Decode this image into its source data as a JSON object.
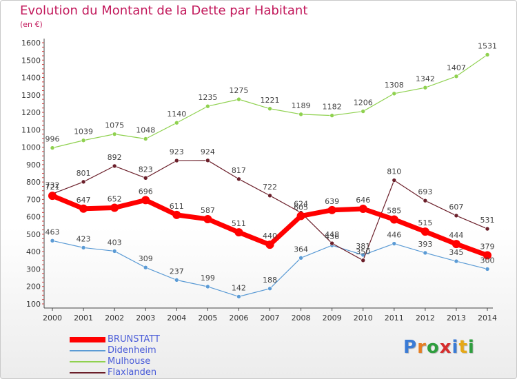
{
  "title": "Evolution du Montant de la Dette par Habitant",
  "unit": "(en €)",
  "logo": {
    "text": "Proxiti",
    "letters": [
      {
        "ch": "P",
        "color": "#3a7bd5"
      },
      {
        "ch": "r",
        "color": "#e67e22"
      },
      {
        "ch": "o",
        "color": "#2e9e3e"
      },
      {
        "ch": "x",
        "color": "#d62d2d"
      },
      {
        "ch": "i",
        "color": "#3a7bd5"
      },
      {
        "ch": "t",
        "color": "#e6a817"
      },
      {
        "ch": "i",
        "color": "#2e9e3e"
      }
    ]
  },
  "chart_data": {
    "type": "line",
    "title": "Evolution du Montant de la Dette par Habitant",
    "subtitle": "(en €)",
    "xlabel": "",
    "ylabel": "",
    "x": [
      "2000",
      "2001",
      "2002",
      "2003",
      "2004",
      "2005",
      "2006",
      "2007",
      "2008",
      "2009",
      "2010",
      "2011",
      "2012",
      "2013",
      "2014"
    ],
    "ylim": [
      100,
      1600
    ],
    "yticks": [
      100,
      200,
      300,
      400,
      500,
      600,
      700,
      800,
      900,
      1000,
      1100,
      1200,
      1300,
      1400,
      1500,
      1600
    ],
    "grid": false,
    "legend_position": "bottom-left",
    "series": [
      {
        "name": "BRUNSTATT",
        "color": "#ff0000",
        "values": [
          721,
          647,
          652,
          696,
          611,
          587,
          511,
          440,
          605,
          639,
          646,
          585,
          515,
          444,
          379
        ]
      },
      {
        "name": "Didenheim",
        "color": "#5b9bd5",
        "values": [
          463,
          423,
          403,
          309,
          237,
          199,
          142,
          188,
          364,
          436,
          381,
          446,
          393,
          345,
          300
        ]
      },
      {
        "name": "Mulhouse",
        "color": "#8fd14f",
        "values": [
          996,
          1039,
          1075,
          1048,
          1140,
          1235,
          1275,
          1221,
          1189,
          1182,
          1206,
          1308,
          1342,
          1407,
          1531
        ]
      },
      {
        "name": "Flaxlanden",
        "color": "#6b1f2a",
        "values": [
          732,
          801,
          892,
          823,
          923,
          924,
          817,
          722,
          624,
          448,
          350,
          810,
          693,
          607,
          531
        ]
      }
    ]
  }
}
